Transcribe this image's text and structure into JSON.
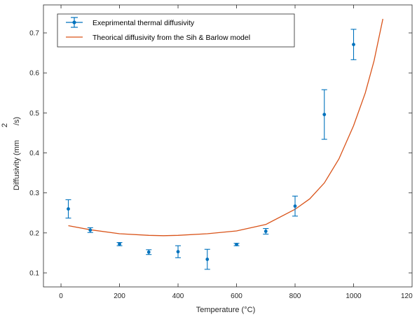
{
  "chart_data": {
    "type": "scatter",
    "xlabel": "Temperature (°C)",
    "ylabel_main": "Diffusivity (mm",
    "ylabel_sup": "2",
    "ylabel_tail": "/s)",
    "xlim": [
      -60,
      1200
    ],
    "ylim": [
      0.065,
      0.77
    ],
    "xticks": [
      0,
      200,
      400,
      600,
      800,
      1000
    ],
    "xtick_labels": [
      "0",
      "200",
      "400",
      "600",
      "800",
      "1000"
    ],
    "xtick_right_label": "120",
    "yticks": [
      0.1,
      0.2,
      0.3,
      0.4,
      0.5,
      0.6,
      0.7
    ],
    "ytick_labels": [
      "0.1",
      "0.2",
      "0.3",
      "0.4",
      "0.5",
      "0.6",
      "0.7"
    ],
    "grid": false,
    "legend_position": "top-left",
    "series": [
      {
        "name": "Exeprimental thermal diffusivity",
        "kind": "errorbar",
        "color": "#0072BD",
        "points": [
          {
            "x": 25,
            "y": 0.26,
            "err": 0.023
          },
          {
            "x": 100,
            "y": 0.207,
            "err": 0.006
          },
          {
            "x": 200,
            "y": 0.172,
            "err": 0.004
          },
          {
            "x": 300,
            "y": 0.152,
            "err": 0.006
          },
          {
            "x": 400,
            "y": 0.153,
            "err": 0.015
          },
          {
            "x": 500,
            "y": 0.134,
            "err": 0.025
          },
          {
            "x": 600,
            "y": 0.171,
            "err": 0.003
          },
          {
            "x": 700,
            "y": 0.204,
            "err": 0.007
          },
          {
            "x": 800,
            "y": 0.267,
            "err": 0.025
          },
          {
            "x": 900,
            "y": 0.496,
            "err": 0.062
          },
          {
            "x": 1000,
            "y": 0.671,
            "err": 0.038
          }
        ]
      },
      {
        "name": "Theorical diffusivity from the Sih & Barlow model",
        "kind": "line",
        "color": "#D95319",
        "points": [
          {
            "x": 25,
            "y": 0.218
          },
          {
            "x": 100,
            "y": 0.208
          },
          {
            "x": 200,
            "y": 0.198
          },
          {
            "x": 300,
            "y": 0.194
          },
          {
            "x": 350,
            "y": 0.193
          },
          {
            "x": 400,
            "y": 0.194
          },
          {
            "x": 500,
            "y": 0.198
          },
          {
            "x": 600,
            "y": 0.205
          },
          {
            "x": 700,
            "y": 0.221
          },
          {
            "x": 800,
            "y": 0.259
          },
          {
            "x": 850,
            "y": 0.285
          },
          {
            "x": 900,
            "y": 0.325
          },
          {
            "x": 950,
            "y": 0.385
          },
          {
            "x": 1000,
            "y": 0.468
          },
          {
            "x": 1040,
            "y": 0.55
          },
          {
            "x": 1070,
            "y": 0.63
          },
          {
            "x": 1100,
            "y": 0.735
          }
        ]
      }
    ]
  }
}
